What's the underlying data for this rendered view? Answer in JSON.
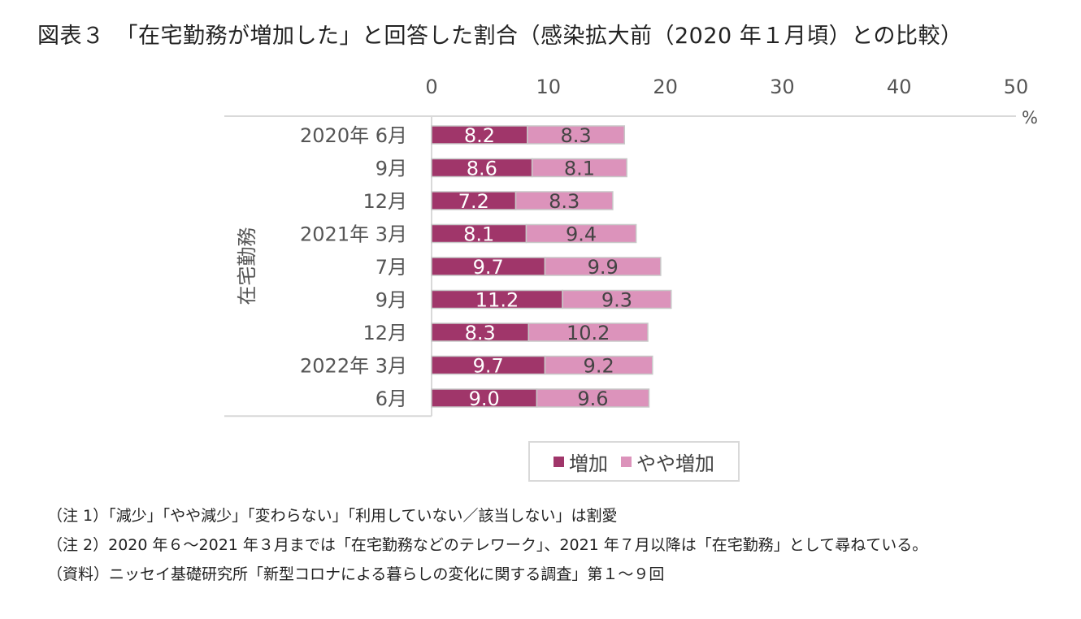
{
  "title": "図表３　「在宅勤務が増加した」と回答した割合（感染拡大前（2020 年１月頃）との比較）",
  "colors": {
    "increase": "#a0366a",
    "slight_increase": "#dc93bb",
    "axis": "#d9d9d9"
  },
  "chart_data": {
    "type": "bar",
    "orientation": "horizontal",
    "stacked": true,
    "xlim": [
      0,
      50
    ],
    "x_ticks": [
      "0",
      "10",
      "20",
      "30",
      "40",
      "50"
    ],
    "x_unit": "%",
    "ylabel": "在宅勤務",
    "categories": [
      "2020年 6月",
      "9月",
      "12月",
      "2021年 3月",
      "7月",
      "9月",
      "12月",
      "2022年 3月",
      "6月"
    ],
    "series": [
      {
        "name": "増加",
        "values": [
          8.2,
          8.6,
          7.2,
          8.1,
          9.7,
          11.2,
          8.3,
          9.7,
          9.0
        ],
        "labels": [
          "8.2",
          "8.6",
          "7.2",
          "8.1",
          "9.7",
          "11.2",
          "8.3",
          "9.7",
          "9.0"
        ]
      },
      {
        "name": "やや増加",
        "values": [
          8.3,
          8.1,
          8.3,
          9.4,
          9.9,
          9.3,
          10.2,
          9.2,
          9.6
        ],
        "labels": [
          "8.3",
          "8.1",
          "8.3",
          "9.4",
          "9.9",
          "9.3",
          "10.2",
          "9.2",
          "9.6"
        ]
      }
    ],
    "legend_position": "bottom",
    "grid": false
  },
  "notes": [
    "（注 1）「減少」「やや減少」「変わらない」「利用していない／該当しない」は割愛",
    "（注 2）2020 年６～2021 年３月までは「在宅勤務などのテレワーク」、2021 年７月以降は「在宅勤務」として尋ねている。",
    "（資料）ニッセイ基礎研究所「新型コロナによる暮らしの変化に関する調査」第１～９回"
  ]
}
